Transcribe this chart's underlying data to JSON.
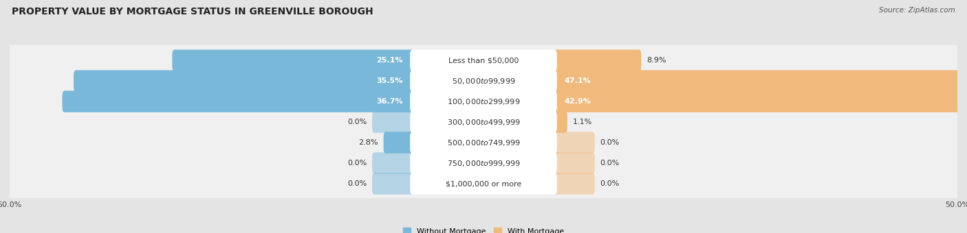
{
  "title": "PROPERTY VALUE BY MORTGAGE STATUS IN GREENVILLE BOROUGH",
  "source": "Source: ZipAtlas.com",
  "categories": [
    "Less than $50,000",
    "$50,000 to $99,999",
    "$100,000 to $299,999",
    "$300,000 to $499,999",
    "$500,000 to $749,999",
    "$750,000 to $999,999",
    "$1,000,000 or more"
  ],
  "without_mortgage": [
    25.1,
    35.5,
    36.7,
    0.0,
    2.8,
    0.0,
    0.0
  ],
  "with_mortgage": [
    8.9,
    47.1,
    42.9,
    1.1,
    0.0,
    0.0,
    0.0
  ],
  "blue_color": "#7AB8D9",
  "orange_color": "#F0BA7D",
  "bg_color": "#E4E4E4",
  "row_bg_color": "#F0F0F0",
  "row_bg_alt": "#E8E8E8",
  "center_badge_color": "#FFFFFF",
  "xlim": 50.0,
  "label_min_stub": 4.0,
  "legend_without": "Without Mortgage",
  "legend_with": "With Mortgage",
  "title_fontsize": 10,
  "source_fontsize": 7.5,
  "bar_label_fontsize": 8,
  "cat_label_fontsize": 8
}
